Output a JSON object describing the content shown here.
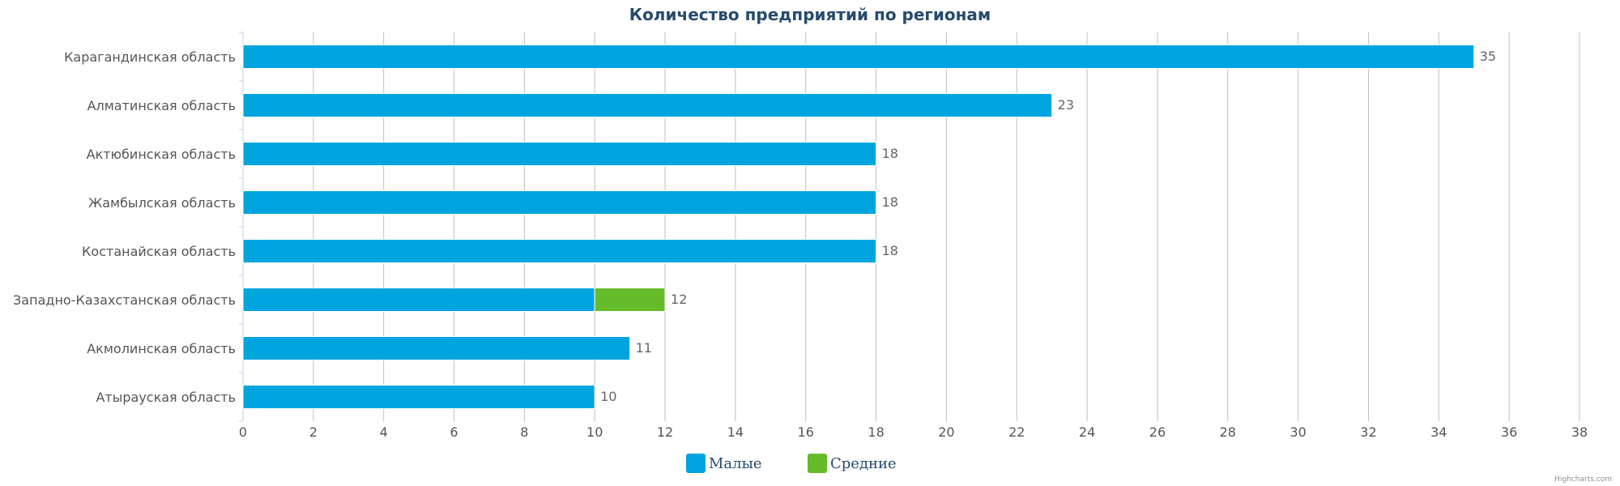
{
  "chart_data": {
    "type": "bar",
    "orientation": "horizontal",
    "stacked": true,
    "title": "Количество предприятий по регионам",
    "categories": [
      "Карагандинская область",
      "Алматинская область",
      "Актюбинская область",
      "Жамбылская область",
      "Костанайская область",
      "Западно-Казахстанская область",
      "Акмолинская область",
      "Атырауская область"
    ],
    "series": [
      {
        "name": "Малые",
        "color": "#00a4df",
        "values": [
          35,
          23,
          18,
          18,
          18,
          10,
          11,
          10
        ]
      },
      {
        "name": "Средние",
        "color": "#66bb2a",
        "values": [
          0,
          0,
          0,
          0,
          0,
          2,
          0,
          0
        ]
      }
    ],
    "totals": [
      "35",
      "23",
      "18",
      "18",
      "18",
      "12",
      "11",
      "10"
    ],
    "xlabel": "",
    "ylabel": "",
    "xlim": [
      0,
      38
    ],
    "ticks": [
      "0",
      "2",
      "4",
      "6",
      "8",
      "10",
      "12",
      "14",
      "16",
      "18",
      "20",
      "22",
      "24",
      "26",
      "28",
      "30",
      "32",
      "34",
      "36",
      "38"
    ],
    "grid": true,
    "legend_position": "bottom-center",
    "credits": "Highcharts.com"
  }
}
